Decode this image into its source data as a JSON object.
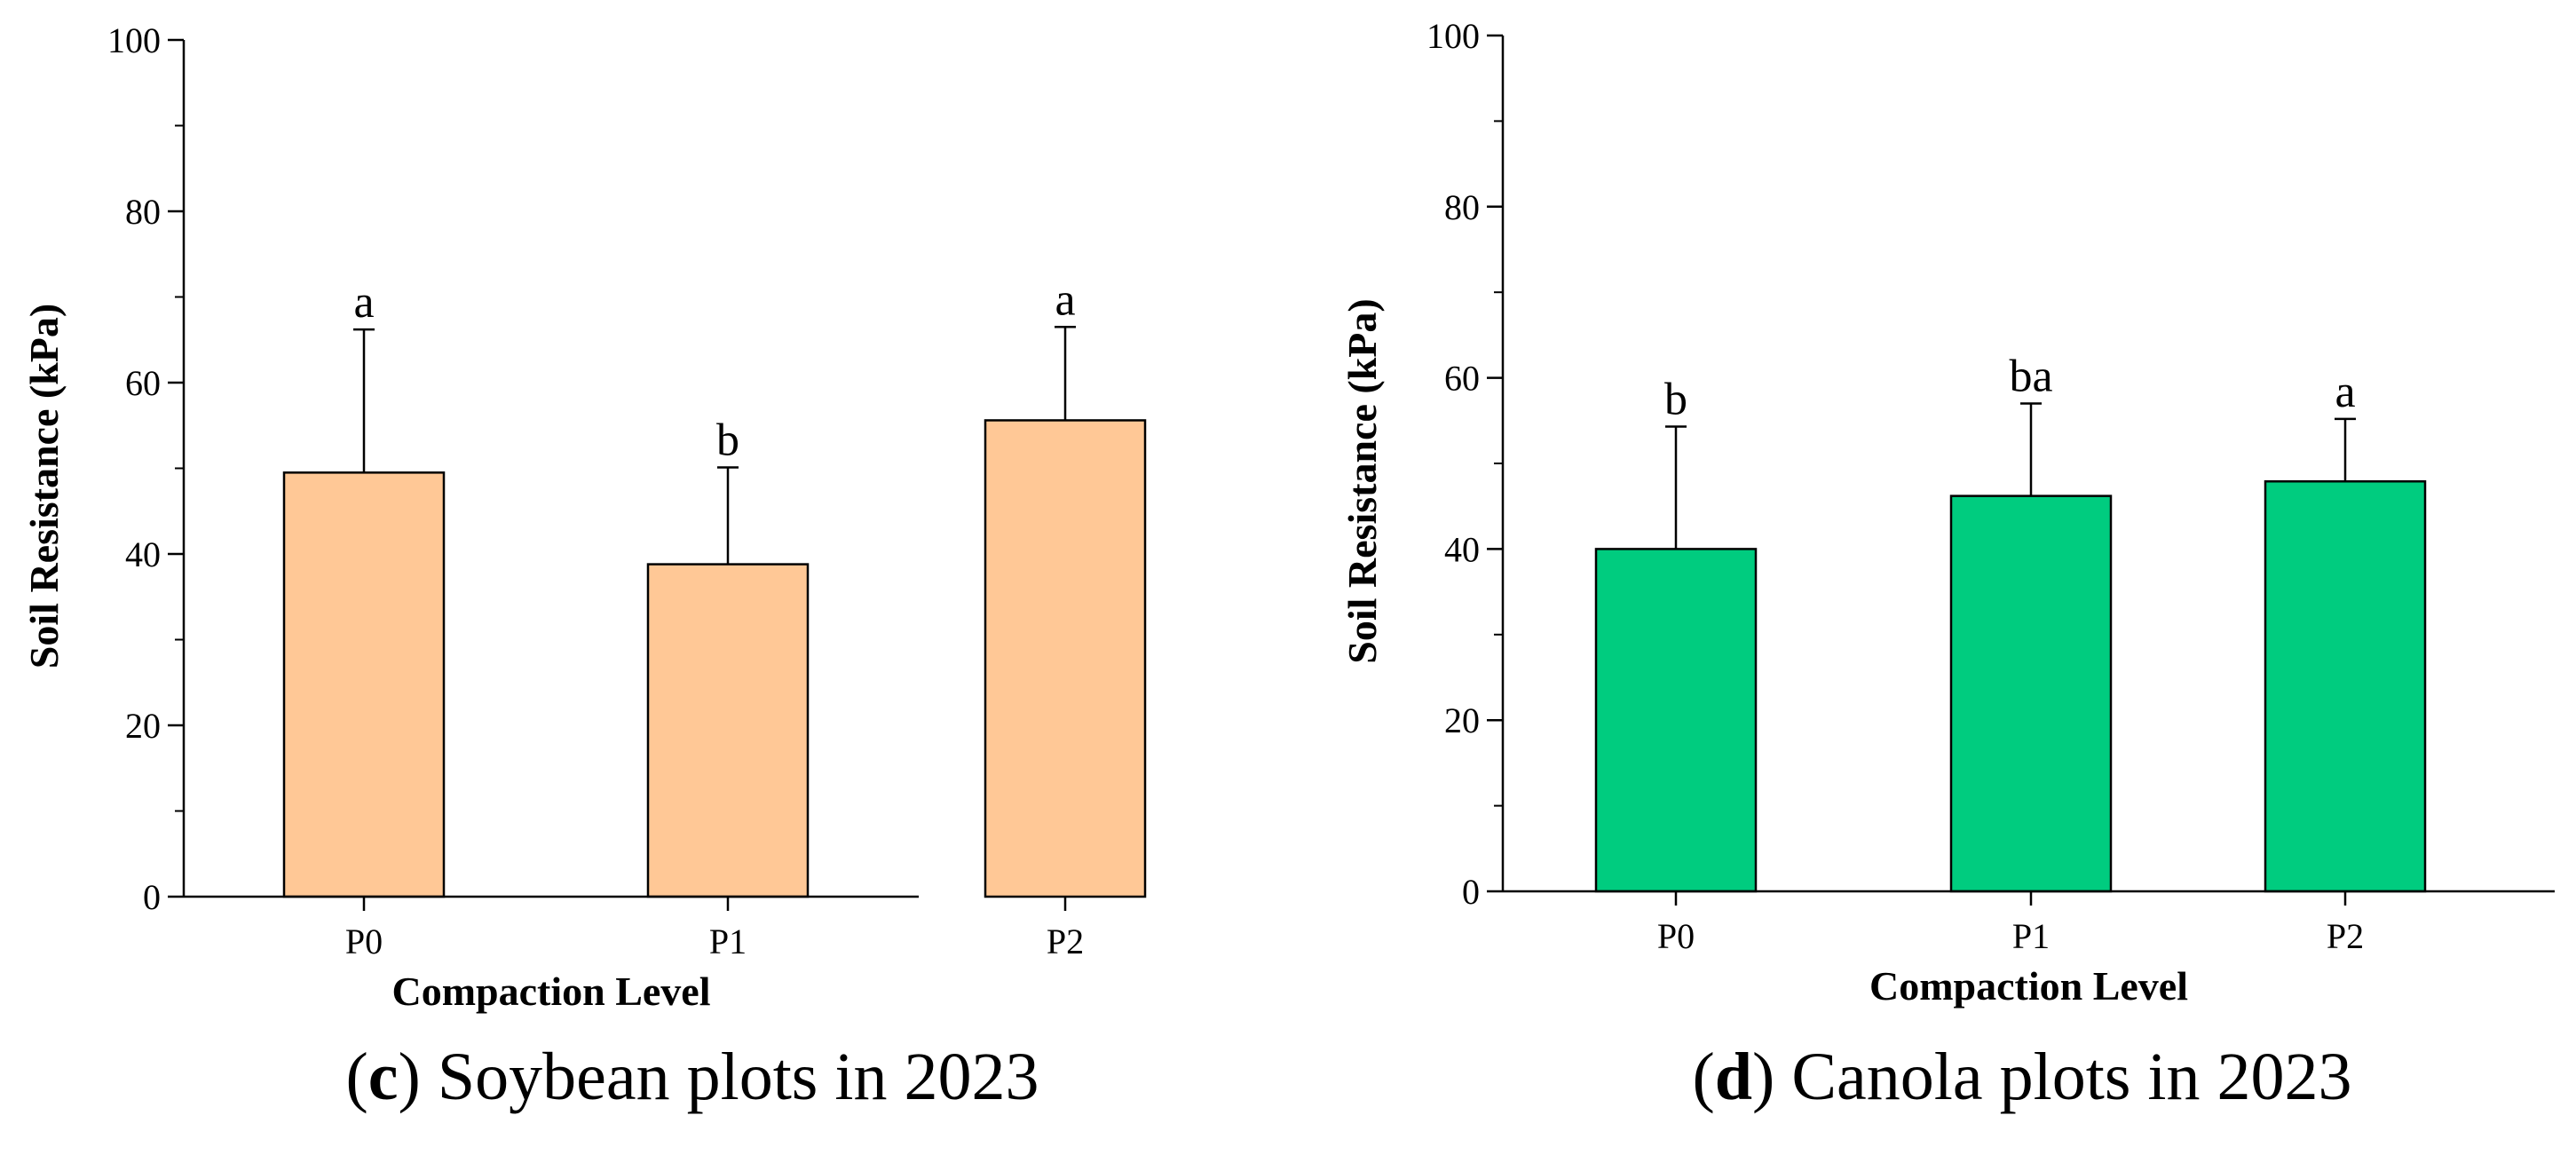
{
  "chart_data": [
    {
      "type": "bar",
      "panel": "c",
      "caption": "Soybean plots in 2023",
      "categories": [
        "P0",
        "P1",
        "P2"
      ],
      "values": [
        49.5,
        38.8,
        55.6
      ],
      "error": [
        16.7,
        11.3,
        10.9
      ],
      "significance": [
        "a",
        "b",
        "a"
      ],
      "xlabel": "Compaction Level",
      "ylabel": "Soil Resistance (kPa)",
      "ylim": [
        0,
        100
      ],
      "yticks": [
        0,
        20,
        40,
        60,
        80,
        100
      ],
      "bar_color": "#FFC896"
    },
    {
      "type": "bar",
      "panel": "d",
      "caption": "Canola plots in 2023",
      "categories": [
        "P0",
        "P1",
        "P2"
      ],
      "values": [
        40.0,
        46.2,
        47.9
      ],
      "error": [
        14.3,
        10.8,
        7.3
      ],
      "significance": [
        "b",
        "ba",
        "a"
      ],
      "xlabel": "Compaction Level",
      "ylabel": "Soil Resistance (kPa)",
      "ylim": [
        0,
        100
      ],
      "yticks": [
        0,
        20,
        40,
        60,
        80,
        100
      ],
      "bar_color": "#00CC7F"
    }
  ]
}
